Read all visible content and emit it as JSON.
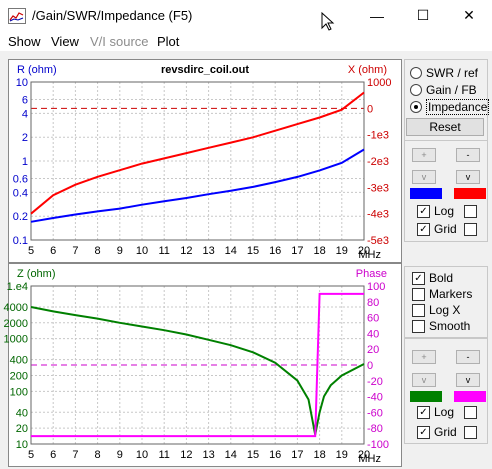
{
  "window": {
    "title": "/Gain/SWR/Impedance (F5)",
    "minimize_glyph": "—",
    "maximize_glyph": "☐",
    "close_glyph": "✕"
  },
  "menu": [
    "Show",
    "View",
    "V/I source",
    "Plot"
  ],
  "top_chart": {
    "title": "revsdirc_coil.out",
    "left_axis_label": "R (ohm)",
    "right_axis_label": "X (ohm)",
    "x_unit": "MHz",
    "x_ticks": [
      "5",
      "6",
      "7",
      "8",
      "9",
      "10",
      "11",
      "12",
      "13",
      "14",
      "15",
      "16",
      "17",
      "18",
      "19",
      "20"
    ],
    "left_ticks": [
      "10",
      "6",
      "4",
      "2",
      "1",
      "0.6",
      "0.4",
      "0.2",
      "0.1"
    ],
    "right_ticks": [
      "1000",
      "0",
      "-1e3",
      "-2e3",
      "-3e3",
      "-4e3",
      "-5e3"
    ]
  },
  "bottom_chart": {
    "left_axis_label": "Z (ohm)",
    "right_axis_label": "Phase",
    "x_unit": "MHz",
    "x_ticks": [
      "5",
      "6",
      "7",
      "8",
      "9",
      "10",
      "11",
      "12",
      "13",
      "14",
      "15",
      "16",
      "17",
      "18",
      "19",
      "20"
    ],
    "left_ticks": [
      "1.e4",
      "4000",
      "2000",
      "1000",
      "400",
      "200",
      "100",
      "40",
      "20",
      "10"
    ],
    "right_ticks": [
      "100",
      "80",
      "60",
      "40",
      "20",
      "0",
      "-20",
      "-40",
      "-60",
      "-80",
      "-100"
    ]
  },
  "chart_data": [
    {
      "type": "line",
      "title": "revsdirc_coil.out",
      "xlabel": "MHz",
      "ylabel": "R (ohm)",
      "y2label": "X (ohm)",
      "xlim": [
        5,
        20
      ],
      "ylim": [
        0.1,
        10
      ],
      "y_scale": "log",
      "y2lim": [
        -5000,
        1000
      ],
      "grid": true,
      "x": [
        5,
        6,
        7,
        8,
        9,
        10,
        11,
        12,
        13,
        14,
        15,
        16,
        17,
        18,
        19,
        20
      ],
      "series": [
        {
          "color": "#0000ff",
          "axis": "left",
          "values": [
            0.17,
            0.19,
            0.21,
            0.23,
            0.25,
            0.28,
            0.31,
            0.34,
            0.38,
            0.42,
            0.47,
            0.54,
            0.63,
            0.76,
            0.95,
            1.4
          ]
        },
        {
          "color": "#ff0000",
          "axis": "right",
          "values": [
            -4000,
            -3300,
            -2900,
            -2600,
            -2350,
            -2100,
            -1900,
            -1700,
            -1500,
            -1300,
            -1100,
            -850,
            -600,
            -350,
            -50,
            600
          ]
        }
      ]
    },
    {
      "type": "line",
      "xlabel": "MHz",
      "ylabel": "Z (ohm)",
      "y2label": "Phase",
      "xlim": [
        5,
        20
      ],
      "ylim": [
        10,
        10000
      ],
      "y_scale": "log",
      "y2lim": [
        -100,
        100
      ],
      "grid": true,
      "x": [
        5,
        6,
        7,
        8,
        9,
        10,
        11,
        12,
        13,
        14,
        15,
        16,
        17,
        17.5,
        17.8,
        18,
        18.2,
        18.5,
        19,
        20
      ],
      "series": [
        {
          "color": "#008000",
          "axis": "left",
          "values": [
            4000,
            3300,
            2800,
            2400,
            2000,
            1700,
            1450,
            1200,
            950,
            750,
            550,
            350,
            160,
            70,
            15,
            40,
            80,
            130,
            200,
            330
          ]
        },
        {
          "color": "#ff00ff",
          "axis": "right",
          "values": [
            -90,
            -90,
            -90,
            -90,
            -90,
            -90,
            -90,
            -90,
            -90,
            -90,
            -90,
            -90,
            -90,
            -90,
            -90,
            90,
            90,
            90,
            90,
            90
          ]
        }
      ]
    }
  ],
  "side_panel": {
    "radios": [
      {
        "label": "SWR / ref",
        "selected": false
      },
      {
        "label": "Gain / FB",
        "selected": false
      },
      {
        "label": "Impedance",
        "selected": true
      }
    ],
    "reset_label": "Reset",
    "top_controls": {
      "color_left": "#0000ff",
      "color_right": "#ff0000",
      "log_label": "Log",
      "log_checked": true,
      "grid_label": "Grid",
      "grid_checked": true
    },
    "options": [
      {
        "label": "Bold",
        "checked": true
      },
      {
        "label": "Markers",
        "checked": false
      },
      {
        "label": "Log X",
        "checked": false
      },
      {
        "label": "Smooth",
        "checked": false
      }
    ],
    "bottom_controls": {
      "color_left": "#008000",
      "color_right": "#ff00ff",
      "log_label": "Log",
      "log_checked": true,
      "grid_label": "Grid",
      "grid_checked": true
    }
  }
}
